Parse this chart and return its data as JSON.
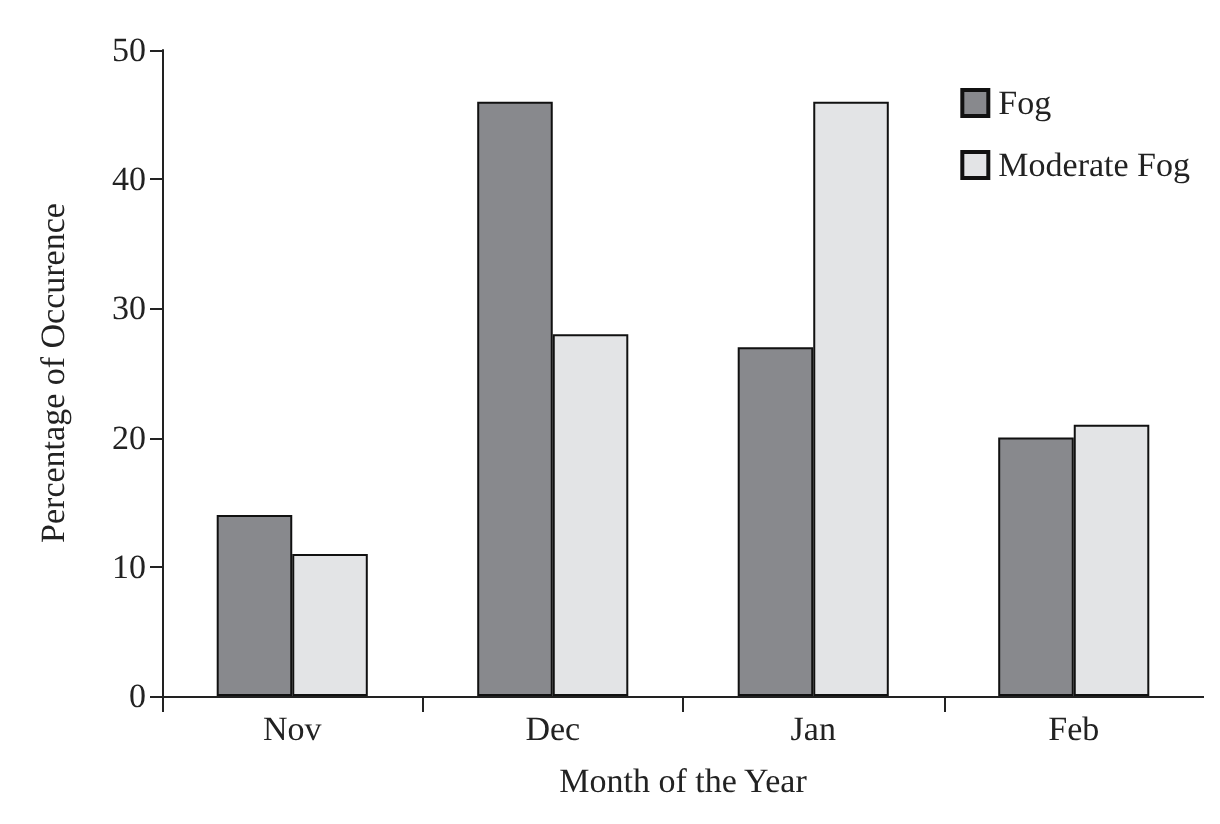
{
  "chart_data": {
    "type": "bar",
    "xlabel": "Month of the Year",
    "ylabel": "Percentage of Occurence",
    "categories": [
      "Nov",
      "Dec",
      "Jan",
      "Feb"
    ],
    "series": [
      {
        "name": "Fog",
        "color": "#88898d",
        "values": [
          14,
          46,
          27,
          20
        ]
      },
      {
        "name": "Moderate Fog",
        "color": "#e3e4e6",
        "values": [
          11,
          28,
          46,
          21
        ]
      }
    ],
    "ylim": [
      0,
      50
    ],
    "yticks": [
      0,
      10,
      20,
      30,
      40,
      50
    ],
    "grid": false,
    "legend": "top right"
  }
}
